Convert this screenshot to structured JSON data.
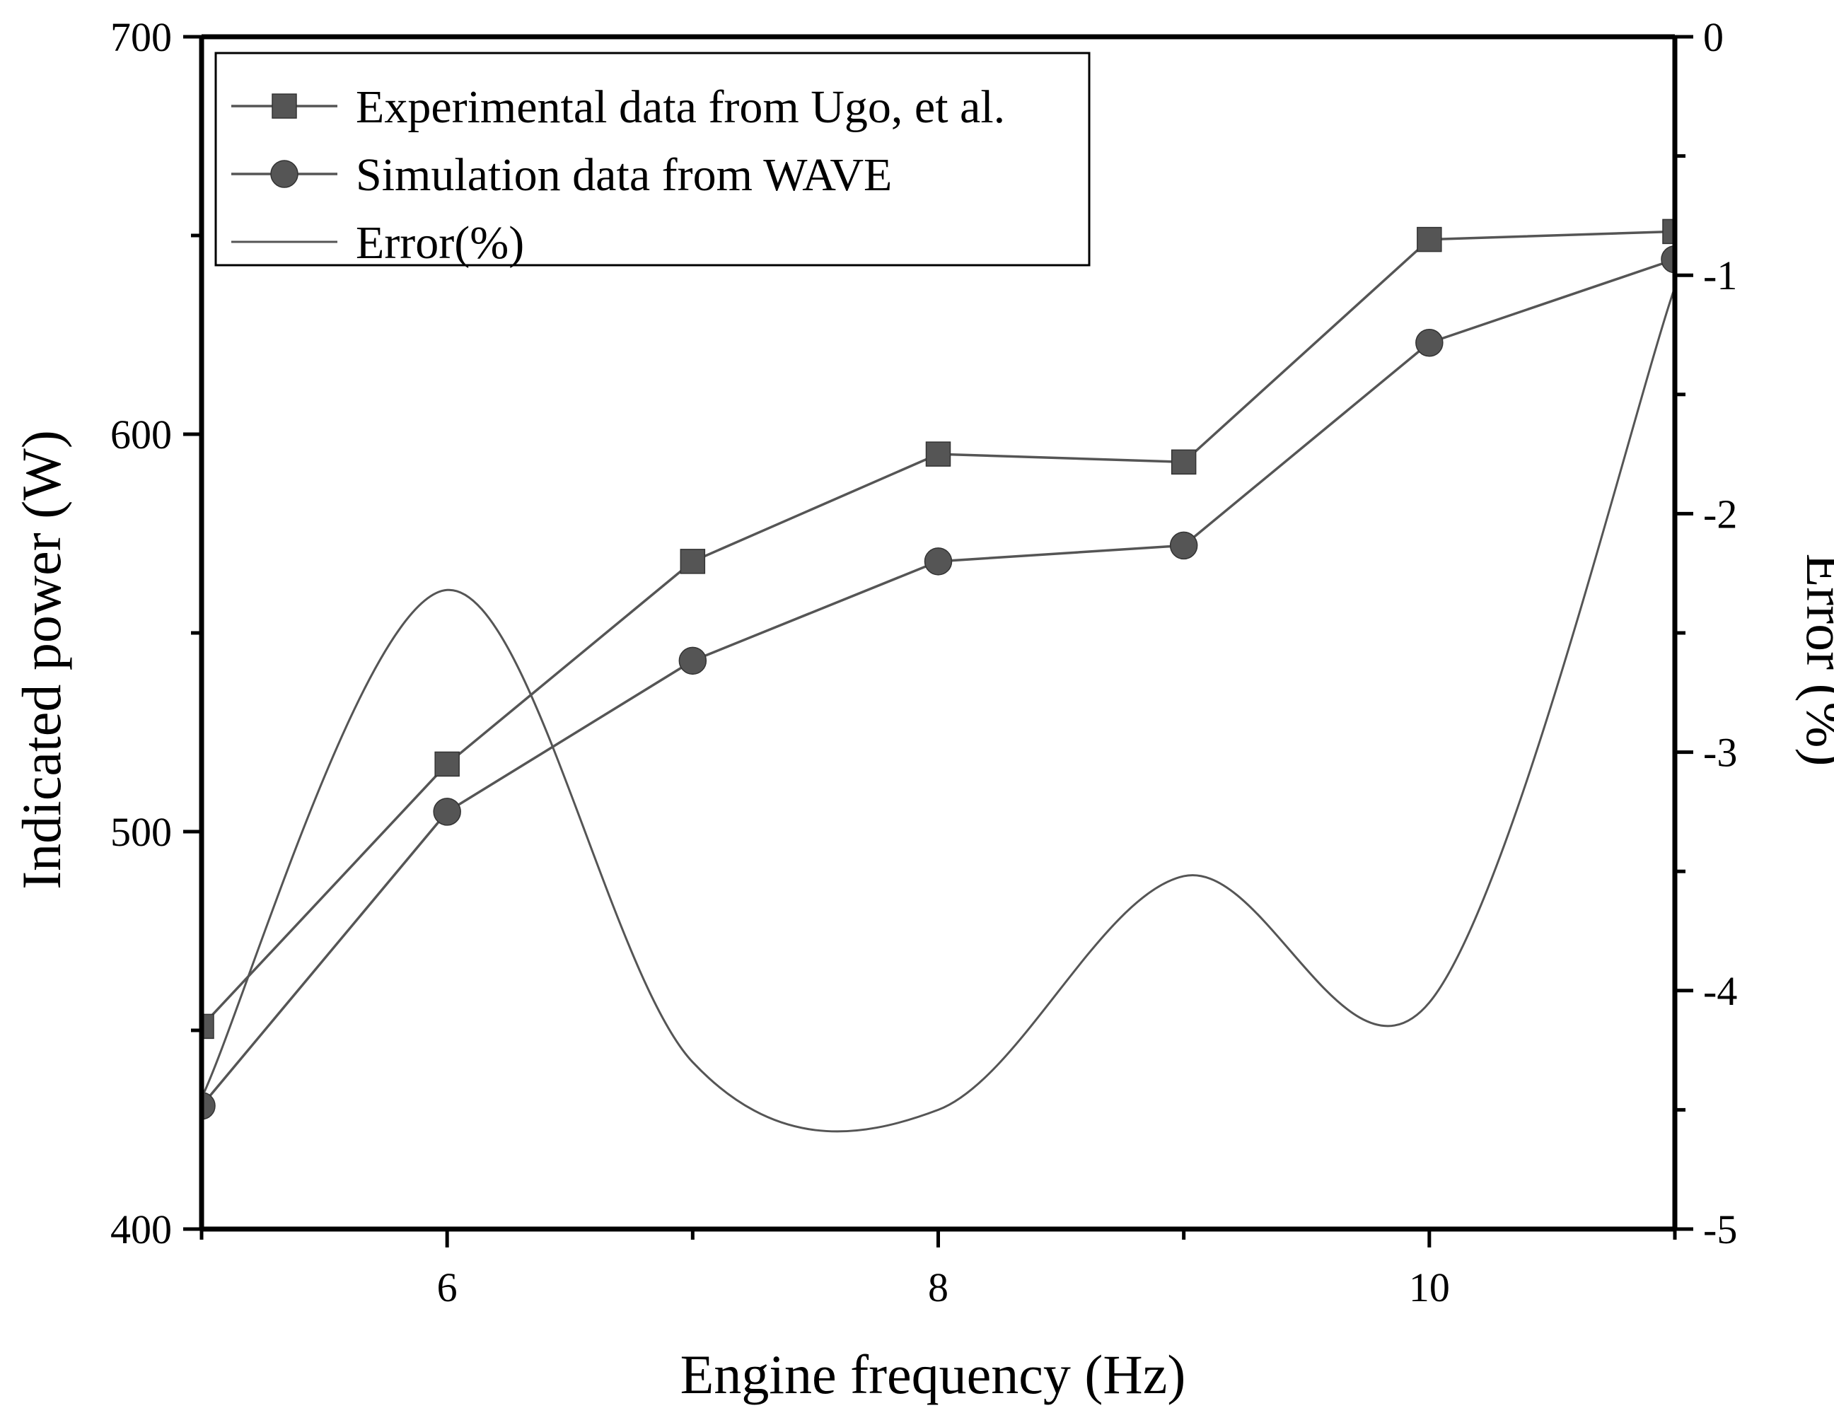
{
  "chart_data": {
    "type": "line",
    "title": "",
    "xlabel": "Engine frequency (Hz)",
    "ylabel": "Indicated power (W)",
    "y2label": "Error (%)",
    "xlim": [
      5,
      11
    ],
    "ylim": [
      400,
      700
    ],
    "y2lim": [
      -5,
      0
    ],
    "x_ticks": [
      6,
      8,
      10
    ],
    "x_minor_ticks": [
      5,
      7,
      9,
      11
    ],
    "y_ticks": [
      400,
      500,
      600,
      700
    ],
    "y_minor_ticks": [
      450,
      550,
      650
    ],
    "y2_ticks": [
      -5,
      -4,
      -3,
      -2,
      -1,
      0
    ],
    "y2_minor_ticks": [
      -4.5,
      -3.5,
      -2.5,
      -1.5,
      -0.5
    ],
    "legend_position": "top-left",
    "x": [
      5,
      6,
      7,
      8,
      9,
      10,
      11
    ],
    "series": [
      {
        "name": "Experimental data from Ugo, et al.",
        "marker": "square",
        "axis": "left",
        "values": [
          451,
          517,
          568,
          595,
          593,
          649,
          651
        ]
      },
      {
        "name": "Simulation data from WAVE",
        "marker": "circle",
        "axis": "left",
        "values": [
          431,
          505,
          543,
          568,
          572,
          623,
          644
        ]
      },
      {
        "name": "Error(%)",
        "marker": "none",
        "axis": "right",
        "smooth": true,
        "values": [
          -4.45,
          -2.32,
          -4.3,
          -4.5,
          -3.52,
          -4.05,
          -1.05
        ]
      }
    ]
  },
  "colors": {
    "series": "#555555",
    "axis": "#000000",
    "background": "#ffffff"
  }
}
